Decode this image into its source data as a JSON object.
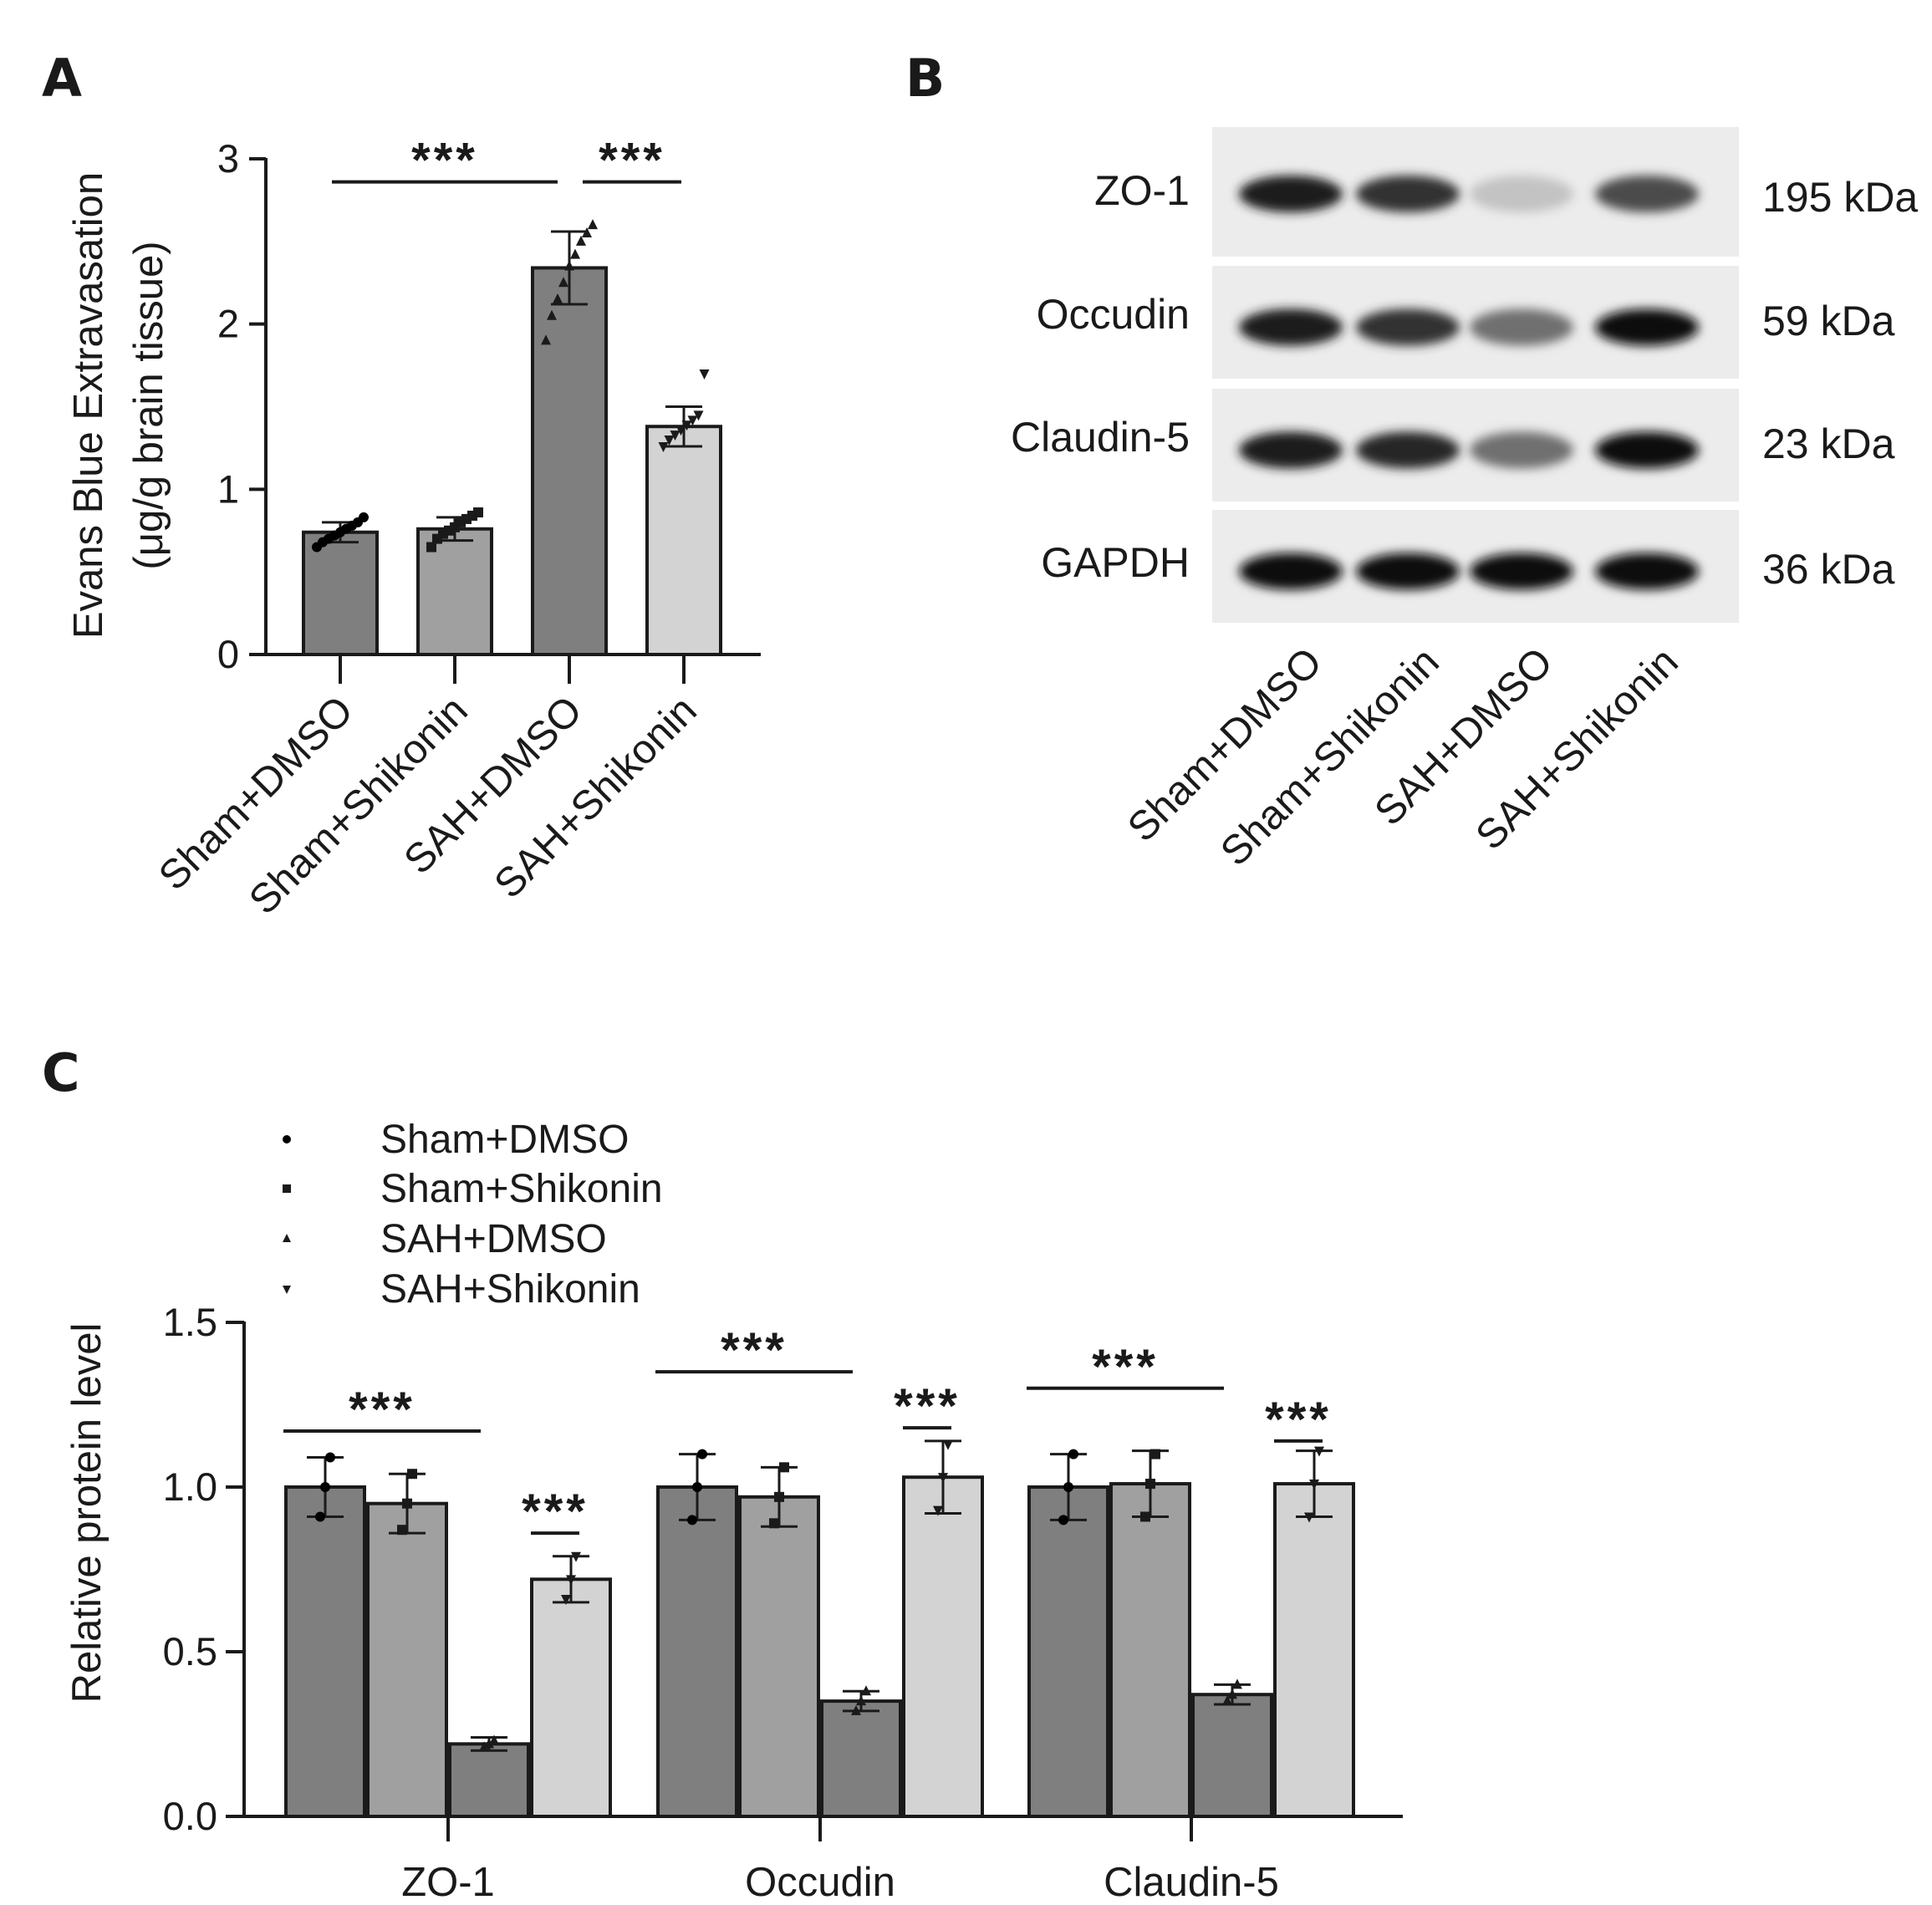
{
  "panel_labels": {
    "a": "A",
    "b": "B",
    "c": "C"
  },
  "significance_marker": "***",
  "colors": {
    "sham_dmso": "#7f7f7f",
    "sham_shikonin": "#a0a0a0",
    "sah_dmso": "#7f7f7f",
    "sah_shikonin": "#d3d3d3",
    "axis": "#1a1a1a"
  },
  "chart_data": [
    {
      "panel": "A",
      "type": "bar",
      "ylabel_line1": "Evans Blue Extravasation",
      "ylabel_line2": "(μg/g brain tissue)",
      "ylim": [
        0,
        3
      ],
      "yticks": [
        "0",
        "1",
        "2",
        "3"
      ],
      "categories": [
        "Sham+DMSO",
        "Sham+Shikonin",
        "SAH+DMSO",
        "SAH+Shikonin"
      ],
      "values": [
        0.74,
        0.76,
        2.34,
        1.38
      ],
      "errors": [
        0.06,
        0.07,
        0.22,
        0.12
      ],
      "points": [
        [
          0.65,
          0.68,
          0.7,
          0.72,
          0.74,
          0.76,
          0.78,
          0.8,
          0.83
        ],
        [
          0.65,
          0.7,
          0.73,
          0.75,
          0.77,
          0.8,
          0.82,
          0.84,
          0.86
        ],
        [
          1.9,
          2.05,
          2.15,
          2.25,
          2.35,
          2.42,
          2.5,
          2.55,
          2.6
        ],
        [
          1.26,
          1.3,
          1.33,
          1.36,
          1.39,
          1.42,
          1.45,
          1.7
        ]
      ],
      "significance": [
        {
          "from": 0,
          "to": 2,
          "level": 2.86
        },
        {
          "from": 2,
          "to": 3,
          "level": 2.86
        }
      ]
    },
    {
      "panel": "C",
      "type": "bar",
      "ylabel": "Relative protein level",
      "ylim": [
        0,
        1.5
      ],
      "yticks": [
        "0.0",
        "0.5",
        "1.0",
        "1.5"
      ],
      "categories": [
        "ZO-1",
        "Occudin",
        "Claudin-5"
      ],
      "series": [
        {
          "name": "Sham+DMSO",
          "marker": "•",
          "values": [
            1.0,
            1.0,
            1.0
          ],
          "errors": [
            0.09,
            0.1,
            0.1
          ],
          "points": [
            [
              0.91,
              1.0,
              1.09
            ],
            [
              0.9,
              1.0,
              1.1
            ],
            [
              0.9,
              1.0,
              1.1
            ]
          ]
        },
        {
          "name": "Sham+Shikonin",
          "marker": "▪",
          "values": [
            0.95,
            0.97,
            1.01
          ],
          "errors": [
            0.09,
            0.09,
            0.1
          ],
          "points": [
            [
              0.87,
              0.95,
              1.04
            ],
            [
              0.89,
              0.97,
              1.06
            ],
            [
              0.91,
              1.01,
              1.1
            ]
          ]
        },
        {
          "name": "SAH+DMSO",
          "marker": "▴",
          "values": [
            0.22,
            0.35,
            0.37
          ],
          "errors": [
            0.02,
            0.03,
            0.03
          ],
          "points": [
            [
              0.21,
              0.22,
              0.23
            ],
            [
              0.32,
              0.35,
              0.38
            ],
            [
              0.35,
              0.37,
              0.4
            ]
          ]
        },
        {
          "name": "SAH+Shikonin",
          "marker": "▾",
          "values": [
            0.72,
            1.03,
            1.01
          ],
          "errors": [
            0.07,
            0.11,
            0.1
          ],
          "points": [
            [
              0.66,
              0.72,
              0.79
            ],
            [
              0.93,
              1.03,
              1.13
            ],
            [
              0.91,
              1.01,
              1.11
            ]
          ]
        }
      ],
      "significance": [
        {
          "group": 0,
          "from": 0,
          "to": 2,
          "level": 1.17
        },
        {
          "group": 0,
          "from": 2,
          "to": 3,
          "level": 0.86
        },
        {
          "group": 1,
          "from": 0,
          "to": 2,
          "level": 1.35
        },
        {
          "group": 1,
          "from": 2,
          "to": 3,
          "level": 1.18
        },
        {
          "group": 2,
          "from": 0,
          "to": 2,
          "level": 1.3
        },
        {
          "group": 2,
          "from": 2,
          "to": 3,
          "level": 1.14
        }
      ]
    }
  ],
  "western_blot": {
    "rows": [
      {
        "protein": "ZO-1",
        "size": "195 kDa",
        "intensity": [
          0.95,
          0.85,
          0.25,
          0.75
        ]
      },
      {
        "protein": "Occudin",
        "size": "59 kDa",
        "intensity": [
          0.95,
          0.85,
          0.6,
          1.0
        ]
      },
      {
        "protein": "Claudin-5",
        "size": "23 kDa",
        "intensity": [
          0.95,
          0.9,
          0.6,
          1.0
        ]
      },
      {
        "protein": "GAPDH",
        "size": "36 kDa",
        "intensity": [
          1.0,
          1.0,
          1.0,
          1.0
        ]
      }
    ],
    "lanes": [
      "Sham+DMSO",
      "Sham+Shikonin",
      "SAH+DMSO",
      "SAH+Shikonin"
    ]
  }
}
